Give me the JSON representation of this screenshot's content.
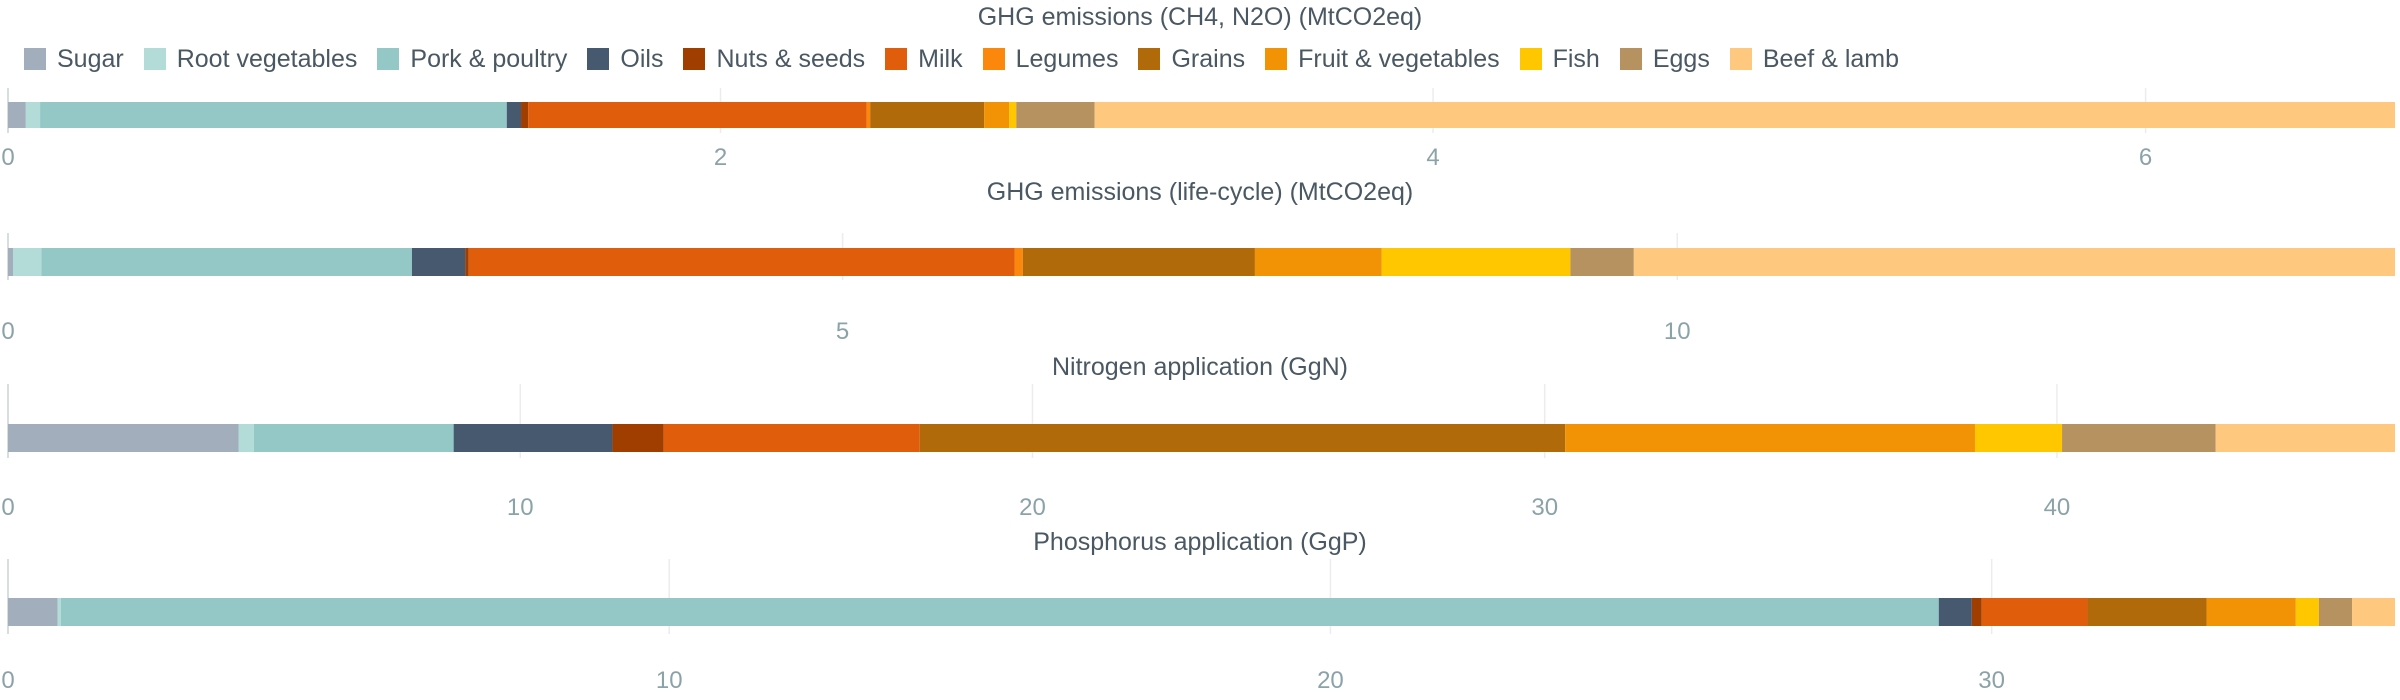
{
  "categories": [
    "Sugar",
    "Root vegetables",
    "Pork & poultry",
    "Oils",
    "Nuts & seeds",
    "Milk",
    "Legumes",
    "Grains",
    "Fruit & vegetables",
    "Fish",
    "Eggs",
    "Beef & lamb"
  ],
  "colors": {
    "Sugar": "#a2aebb",
    "Root vegetables": "#b3dcd9",
    "Pork & poultry": "#93c8c7",
    "Oils": "#46596e",
    "Nuts & seeds": "#a03e00",
    "Milk": "#e05d0c",
    "Legumes": "#fb870c",
    "Grains": "#b06a0a",
    "Fruit & vegetables": "#f29305",
    "Fish": "#ffc700",
    "Eggs": "#b79261",
    "Beef & lamb": "#fec87e"
  },
  "chart_data": [
    {
      "type": "bar",
      "orientation": "horizontal-stacked",
      "title": "GHG emissions (CH4, N2O) (MtCO2eq)",
      "xlim": [
        0,
        6.7
      ],
      "ticks": [
        0,
        2,
        4,
        6
      ],
      "series": [
        {
          "name": "Sugar",
          "value": 0.05
        },
        {
          "name": "Root vegetables",
          "value": 0.04
        },
        {
          "name": "Pork & poultry",
          "value": 1.31
        },
        {
          "name": "Oils",
          "value": 0.04
        },
        {
          "name": "Nuts & seeds",
          "value": 0.02
        },
        {
          "name": "Milk",
          "value": 0.95
        },
        {
          "name": "Legumes",
          "value": 0.01
        },
        {
          "name": "Grains",
          "value": 0.32
        },
        {
          "name": "Fruit & vegetables",
          "value": 0.07
        },
        {
          "name": "Fish",
          "value": 0.02
        },
        {
          "name": "Eggs",
          "value": 0.22
        },
        {
          "name": "Beef & lamb",
          "value": 3.65
        }
      ]
    },
    {
      "type": "bar",
      "orientation": "horizontal-stacked",
      "title": "GHG emissions (life-cycle) (MtCO2eq)",
      "xlim": [
        0,
        14.3
      ],
      "ticks": [
        0,
        5,
        10
      ],
      "series": [
        {
          "name": "Sugar",
          "value": 0.03
        },
        {
          "name": "Root vegetables",
          "value": 0.17
        },
        {
          "name": "Pork & poultry",
          "value": 2.22
        },
        {
          "name": "Oils",
          "value": 0.32
        },
        {
          "name": "Nuts & seeds",
          "value": 0.02
        },
        {
          "name": "Milk",
          "value": 3.27
        },
        {
          "name": "Legumes",
          "value": 0.05
        },
        {
          "name": "Grains",
          "value": 1.39
        },
        {
          "name": "Fruit & vegetables",
          "value": 0.76
        },
        {
          "name": "Fish",
          "value": 1.13
        },
        {
          "name": "Eggs",
          "value": 0.38
        },
        {
          "name": "Beef & lamb",
          "value": 4.56
        }
      ]
    },
    {
      "type": "bar",
      "orientation": "horizontal-stacked",
      "title": "Nitrogen application (GgN)",
      "xlim": [
        0,
        46.6
      ],
      "ticks": [
        0,
        10,
        20,
        30,
        40
      ],
      "series": [
        {
          "name": "Sugar",
          "value": 4.5
        },
        {
          "name": "Root vegetables",
          "value": 0.3
        },
        {
          "name": "Pork & poultry",
          "value": 3.9
        },
        {
          "name": "Oils",
          "value": 3.1
        },
        {
          "name": "Nuts & seeds",
          "value": 1.0
        },
        {
          "name": "Milk",
          "value": 5.0
        },
        {
          "name": "Legumes",
          "value": 0.0
        },
        {
          "name": "Grains",
          "value": 12.6
        },
        {
          "name": "Fruit & vegetables",
          "value": 8.0
        },
        {
          "name": "Fish",
          "value": 1.7
        },
        {
          "name": "Eggs",
          "value": 3.0
        },
        {
          "name": "Beef & lamb",
          "value": 3.5
        }
      ]
    },
    {
      "type": "bar",
      "orientation": "horizontal-stacked",
      "title": "Phosphorus application (GgP)",
      "xlim": [
        0,
        36.1
      ],
      "ticks": [
        0,
        10,
        20,
        30
      ],
      "series": [
        {
          "name": "Sugar",
          "value": 0.75
        },
        {
          "name": "Root vegetables",
          "value": 0.05
        },
        {
          "name": "Pork & poultry",
          "value": 28.4
        },
        {
          "name": "Oils",
          "value": 0.5
        },
        {
          "name": "Nuts & seeds",
          "value": 0.15
        },
        {
          "name": "Milk",
          "value": 1.6
        },
        {
          "name": "Legumes",
          "value": 0.0
        },
        {
          "name": "Grains",
          "value": 1.8
        },
        {
          "name": "Fruit & vegetables",
          "value": 1.35
        },
        {
          "name": "Fish",
          "value": 0.35
        },
        {
          "name": "Eggs",
          "value": 0.5
        },
        {
          "name": "Beef & lamb",
          "value": 0.65
        }
      ]
    }
  ]
}
